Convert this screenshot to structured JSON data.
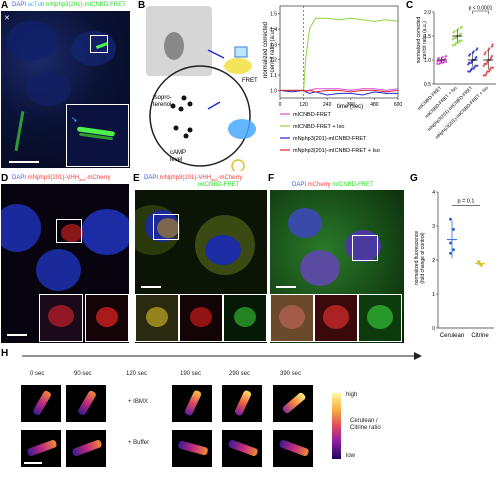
{
  "panels": {
    "A": {
      "letter": "A",
      "title_parts": [
        {
          "text": "DAPI ",
          "color": "#3a5bff"
        },
        {
          "text": "acTub ",
          "color": "#3bb0ff"
        },
        {
          "text": "mNphp3(201)-mICNBD-FRET",
          "color": "#2fd62f"
        }
      ]
    },
    "B": {
      "letter": "B",
      "labels": [
        "Isopro-",
        "terenol",
        "cAMP",
        "level",
        "FRET"
      ]
    },
    "B_chart": {
      "y_label_1": "normalized corrected",
      "y_label_2": "cer/cit ratio (a.u.)",
      "x_label": "time (sec)",
      "x_ticks": [
        "0",
        "120",
        "240",
        "360",
        "480",
        "600"
      ],
      "y_ticks": [
        "1.0",
        "1.1",
        "1.2",
        "1.3",
        "1.4",
        "1.5"
      ],
      "legend": [
        {
          "label": "mICNBD-FRET",
          "color": "#d64fd6"
        },
        {
          "label": "mICNBD-FRET + Iso",
          "color": "#8ed43a"
        },
        {
          "label": "mNphp3(201)-mICNBD-FRET",
          "color": "#1f2bd6"
        },
        {
          "label": "mNphp3(201)-mICNBD-FRET + Iso",
          "color": "#e0262c"
        }
      ]
    },
    "C": {
      "letter": "C",
      "y_label_1": "normalized corrected",
      "y_label_2": "cer/cit ratio (a.u.)",
      "y_ticks": [
        "0.5",
        "1.0",
        "1.5",
        "2.0"
      ],
      "pvalue": "p < 0.0001",
      "categories": [
        "mICNBD-FRET",
        "mICNBD-FRET + Iso",
        "mNphp3(201)-mICNBD-FRET",
        "mNphp3(201)-mICNBD-FRET + Iso"
      ]
    },
    "D": {
      "letter": "D",
      "title_parts": [
        {
          "text": "DAPI ",
          "color": "#3a5bff"
        },
        {
          "text": "mNphp3(201)-VHH",
          "color": "#ff3b3b"
        },
        {
          "text": "anti",
          "color": "#ff3b3b"
        },
        {
          "text": "-mCherry",
          "color": "#ff3b3b"
        }
      ]
    },
    "E": {
      "letter": "E",
      "title_parts_1": [
        {
          "text": "DAPI ",
          "color": "#3a5bff"
        },
        {
          "text": "mNphp3(201)-VHH",
          "color": "#ff3b3b"
        },
        {
          "text": "anti",
          "color": "#ff3b3b"
        },
        {
          "text": "-mCherry",
          "color": "#ff3b3b"
        }
      ],
      "title_line_2": {
        "text": "mICNBD-FRET",
        "color": "#2fd62f"
      }
    },
    "F": {
      "letter": "F",
      "title_parts": [
        {
          "text": "DAPI ",
          "color": "#3a5bff"
        },
        {
          "text": "mCherry ",
          "color": "#ff3b3b"
        },
        {
          "text": "mICNBD-FRET",
          "color": "#2fd62f"
        }
      ]
    },
    "G": {
      "letter": "G",
      "y_label_1": "normalized fluorescence",
      "y_label_2": "(fold change of control)",
      "y_ticks": [
        "0",
        "1",
        "2",
        "3",
        "4"
      ],
      "pvalue": "p = 0.1",
      "categories": [
        "Cerulean",
        "Citrine"
      ]
    },
    "H": {
      "letter": "H",
      "times": [
        "0 sec",
        "90 sec",
        "120 sec",
        "190 sec",
        "290 sec",
        "390 sec"
      ],
      "conditions": [
        "+ IBMX",
        "+ Buffer"
      ],
      "colorbar_high": "high",
      "colorbar_low": "low",
      "colorbar_label_1": "Cerulean /",
      "colorbar_label_2": "Citrine ratio"
    }
  },
  "chart_data": [
    {
      "type": "line",
      "panel": "B",
      "xlabel": "time (sec)",
      "ylabel": "normalized corrected cer/cit ratio (a.u.)",
      "xlim": [
        0,
        600
      ],
      "ylim": [
        0.95,
        1.55
      ],
      "stimulus_x": 120,
      "x": [
        0,
        60,
        120,
        130,
        150,
        180,
        240,
        300,
        360,
        420,
        480,
        540,
        600
      ],
      "series": [
        {
          "name": "mICNBD-FRET",
          "color": "#d64fd6",
          "values": [
            1.0,
            1.0,
            1.0,
            1.0,
            1.0,
            1.01,
            1.01,
            1.01,
            1.0,
            1.01,
            1.01,
            1.0,
            1.01
          ]
        },
        {
          "name": "mICNBD-FRET + Iso",
          "color": "#8ed43a",
          "values": [
            1.0,
            1.0,
            1.0,
            1.2,
            1.4,
            1.47,
            1.47,
            1.46,
            1.47,
            1.46,
            1.45,
            1.46,
            1.45
          ]
        },
        {
          "name": "mNphp3(201)-mICNBD-FRET",
          "color": "#1f2bd6",
          "values": [
            1.0,
            0.99,
            1.0,
            0.99,
            0.98,
            0.99,
            0.97,
            0.98,
            0.98,
            0.97,
            0.99,
            0.98,
            0.98
          ]
        },
        {
          "name": "mNphp3(201)-mICNBD-FRET + Iso",
          "color": "#e0262c",
          "values": [
            1.0,
            1.0,
            1.0,
            0.99,
            1.0,
            0.99,
            1.0,
            1.0,
            0.99,
            1.0,
            1.0,
            0.99,
            1.0
          ]
        }
      ]
    },
    {
      "type": "scatter",
      "panel": "C",
      "ylabel": "normalized corrected cer/cit ratio (a.u.)",
      "ylim": [
        0.5,
        2.0
      ],
      "categories": [
        "mICNBD-FRET",
        "mICNBD-FRET + Iso",
        "mNphp3(201)-mICNBD-FRET",
        "mNphp3(201)-mICNBD-FRET + Iso"
      ],
      "means": [
        1.0,
        1.5,
        1.0,
        1.0
      ],
      "sd": [
        0.05,
        0.12,
        0.15,
        0.2
      ],
      "colors": [
        "#d64fd6",
        "#8ed43a",
        "#1f2bd6",
        "#e0262c"
      ],
      "comparison": {
        "between": [
          2,
          3
        ],
        "label": "p < 0.0001"
      }
    },
    {
      "type": "scatter",
      "panel": "G",
      "ylabel": "normalized fluorescence (fold change of control)",
      "ylim": [
        0,
        4
      ],
      "categories": [
        "Cerulean",
        "Citrine"
      ],
      "means": [
        2.6,
        1.9
      ],
      "sd": [
        0.55,
        0.1
      ],
      "points": [
        [
          3.2,
          2.9,
          2.5,
          2.3,
          2.2
        ],
        [
          1.95,
          1.85,
          1.9
        ]
      ],
      "colors": [
        "#2a6ad6",
        "#d6c52a"
      ],
      "comparison": {
        "between": [
          0,
          1
        ],
        "label": "p = 0.1"
      }
    }
  ]
}
